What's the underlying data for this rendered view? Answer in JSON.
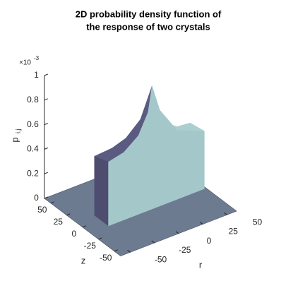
{
  "chart_data": {
    "type": "surface3d",
    "title": [
      "2D probability density function of",
      "the response of two crystals"
    ],
    "xlabel": "r",
    "ylabel": "z",
    "zlabel": {
      "text": "p",
      "subscript": "i,j"
    },
    "zexponent": {
      "base": "×10",
      "power": "-3"
    },
    "xlim": [
      -60,
      60
    ],
    "ylim": [
      -60,
      60
    ],
    "zlim": [
      0,
      1
    ],
    "xticks": [
      -50,
      -25,
      0,
      25,
      50
    ],
    "yticks": [
      -50,
      -25,
      0,
      25,
      50
    ],
    "zticks": [
      0,
      0.2,
      0.4,
      0.6,
      0.8,
      1
    ],
    "floor_color": "#6d7b91",
    "surface": {
      "vertices": [
        [
          4,
          -12,
          1
        ],
        [
          0,
          -12,
          0.8
        ],
        [
          -10,
          -12,
          0.64
        ],
        [
          -25,
          -12,
          0.55
        ],
        [
          -41,
          -12,
          0.52
        ],
        [
          12,
          -12,
          0.78
        ],
        [
          30,
          -12,
          0.56
        ],
        [
          58,
          -12,
          0.47
        ],
        [
          -5,
          -7.6,
          0.74
        ],
        [
          -16.5,
          -2.1,
          0.6
        ],
        [
          -27,
          3.4,
          0.53
        ],
        [
          -41,
          10,
          0.48
        ],
        [
          14.8,
          -7.6,
          0.74
        ],
        [
          28,
          -2.1,
          0.58
        ],
        [
          40,
          3.4,
          0.5
        ],
        [
          58,
          10,
          0.45
        ],
        [
          -41,
          -12,
          0
        ],
        [
          58,
          -12,
          0
        ],
        [
          -41,
          10,
          0
        ]
      ],
      "faces": [
        {
          "vertices": [
            0,
            8,
            12
          ],
          "color": "#a9cdcf"
        },
        {
          "vertices": [
            8,
            9,
            13,
            12
          ],
          "color": "#a9cdcf"
        },
        {
          "vertices": [
            9,
            10,
            14,
            13
          ],
          "color": "#a9cdcf"
        },
        {
          "vertices": [
            10,
            11,
            15,
            14
          ],
          "color": "#a9cdcf"
        },
        {
          "vertices": [
            0,
            12,
            5
          ],
          "color": "#abcfd0"
        },
        {
          "vertices": [
            5,
            12,
            13,
            6
          ],
          "color": "#abcfd0"
        },
        {
          "vertices": [
            6,
            13,
            14,
            7
          ],
          "color": "#abcfd0"
        },
        {
          "vertices": [
            7,
            14,
            15
          ],
          "color": "#abcfd0"
        },
        {
          "vertices": [
            0,
            1,
            8
          ],
          "color": "#5b5b82"
        },
        {
          "vertices": [
            1,
            2,
            9,
            8
          ],
          "color": "#5b5b82"
        },
        {
          "vertices": [
            2,
            3,
            10,
            9
          ],
          "color": "#5b5b82"
        },
        {
          "vertices": [
            3,
            4,
            11,
            10
          ],
          "color": "#5b5b82"
        },
        {
          "vertices": [
            4,
            11,
            18,
            16
          ],
          "color": "#4e4d70"
        },
        {
          "vertices": [
            16,
            4,
            3,
            2,
            1,
            0,
            5,
            6,
            7,
            17
          ],
          "color": "#a4c8ca"
        }
      ]
    }
  }
}
